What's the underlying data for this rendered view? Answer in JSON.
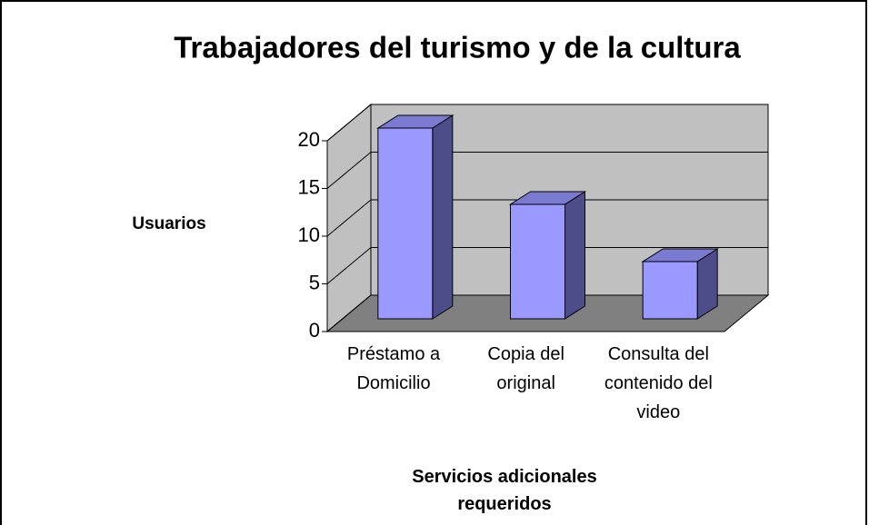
{
  "chart_data": {
    "type": "bar3d",
    "title": "Trabajadores del turismo y de la cultura",
    "y_label": "Usuarios",
    "x_label": "Servicios adicionales requeridos",
    "categories": [
      "Préstamo a Domicilio",
      "Copia del original",
      "Consulta del contenido del video"
    ],
    "values": [
      20,
      12,
      6
    ],
    "color": "#9999ff",
    "ylim": [
      0,
      20
    ],
    "yticks": [
      0,
      5,
      10,
      15,
      20
    ],
    "grid": true
  }
}
